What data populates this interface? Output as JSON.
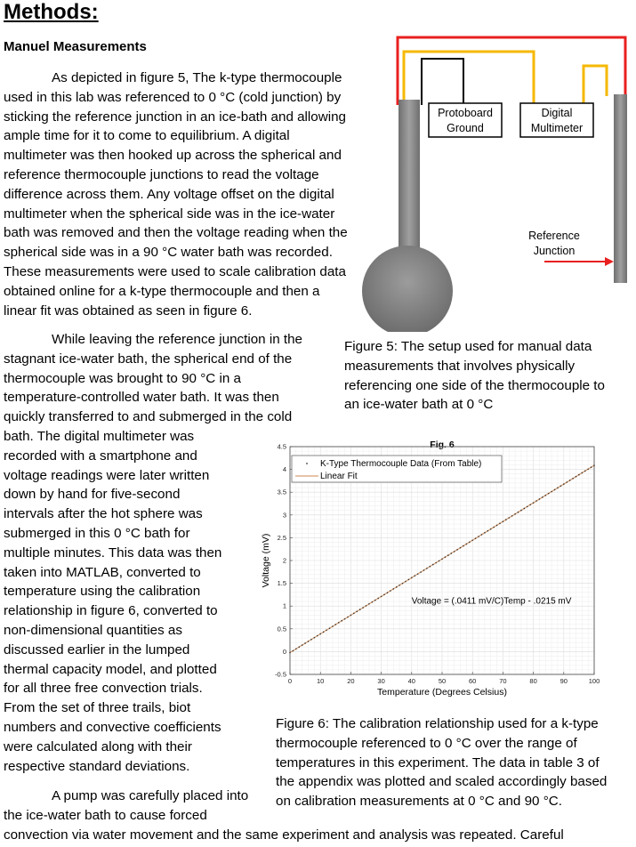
{
  "section_title": "Methods:",
  "subsection_title": "Manuel Measurements",
  "paragraph1_lines": [
    "As depicted in figure 5, The k-type thermocouple",
    "used in this lab was referenced to 0 °C (cold junction) by",
    "sticking the reference junction in an ice-bath and allowing",
    "ample time for it to come to equilibrium. A digital",
    "multimeter was then hooked up across the spherical and",
    "reference thermocouple junctions to read the voltage",
    "difference across them. Any voltage offset on the digital",
    "multimeter when the spherical side was in the ice-water",
    "bath was removed and then the voltage reading when the",
    "spherical side was in a 90 °C water bath was recorded.",
    "These measurements were used to scale calibration data",
    "obtained online for a k-type thermocouple and then a",
    "linear fit was obtained as seen in figure 6."
  ],
  "paragraph2_lines": [
    "While leaving the reference junction in the",
    "stagnant ice-water bath, the spherical end of the",
    "thermocouple was brought to 90 °C in a",
    "temperature-controlled water bath. It was then",
    "quickly transferred to and submerged in the cold",
    "bath. The digital multimeter was",
    "recorded with a smartphone and",
    "voltage readings were later written",
    "down by hand for five-second",
    "intervals after the hot sphere was",
    "submerged in this 0 °C bath for",
    "multiple minutes. This data was then",
    "taken into MATLAB, converted to",
    "temperature using the calibration",
    "relationship in figure 6, converted to",
    "non-dimensional quantities as",
    "discussed earlier in the lumped",
    "thermal capacity model, and plotted",
    "for all three free convection trials.",
    "From the set of three trails, biot",
    "numbers and convective coefficients",
    "were calculated along with their",
    "respective standard deviations."
  ],
  "paragraph3_lines": [
    "A pump was carefully placed into",
    "the ice-water bath to cause forced",
    "convection via water movement and the same experiment and analysis was repeated. Careful"
  ],
  "figure5": {
    "protoboard_label": [
      "Protoboard",
      "Ground"
    ],
    "multimeter_label": [
      "Digital",
      "Multimeter"
    ],
    "reference_label": [
      "Reference",
      "Junction"
    ],
    "colors": {
      "red_wire": "#e8201f",
      "yellow_wire": "#f5b800",
      "black_wire": "#000000",
      "probe": "#888888"
    },
    "caption_lines": [
      "Figure 5: The setup used for manual data",
      "measurements that involves physically",
      "referencing one side of the thermocouple to",
      "an ice-water bath at 0 °C"
    ]
  },
  "chart_data": {
    "type": "scatter",
    "title": "Fig. 6",
    "xlabel": "Temperature (Degrees Celsius)",
    "ylabel": "Voltage (mV)",
    "xlim": [
      0,
      100
    ],
    "ylim": [
      -0.5,
      4.5
    ],
    "xticks": [
      "0",
      "10",
      "20",
      "30",
      "40",
      "50",
      "60",
      "70",
      "80",
      "90",
      "100"
    ],
    "yticks": [
      "-0.5",
      "0",
      "0.5",
      "1",
      "1.5",
      "2",
      "2.5",
      "3",
      "3.5",
      "4",
      "4.5"
    ],
    "grid": true,
    "legend_position": "top-left",
    "series": [
      {
        "name": "K-Type Thermocouple Data (From Table)",
        "kind": "points",
        "color": "#333333",
        "x_start": 0,
        "x_end": 100,
        "x_step": 1,
        "slope": 0.0411,
        "intercept": -0.0215
      },
      {
        "name": "Linear Fit",
        "kind": "line",
        "color": "#d9a074",
        "x": [
          0,
          100
        ],
        "y": [
          -0.0215,
          4.0885
        ]
      }
    ],
    "annotation": "Voltage = (.0411 mV/C)Temp - .0215 mV"
  },
  "figure6_caption_lines": [
    "Figure 6: The calibration relationship used for a k-type",
    "thermocouple referenced to 0 °C over the range of",
    "temperatures in this experiment. The data in table 3 of",
    "the appendix was plotted and scaled accordingly based",
    "on calibration measurements at 0 °C and 90 °C."
  ]
}
